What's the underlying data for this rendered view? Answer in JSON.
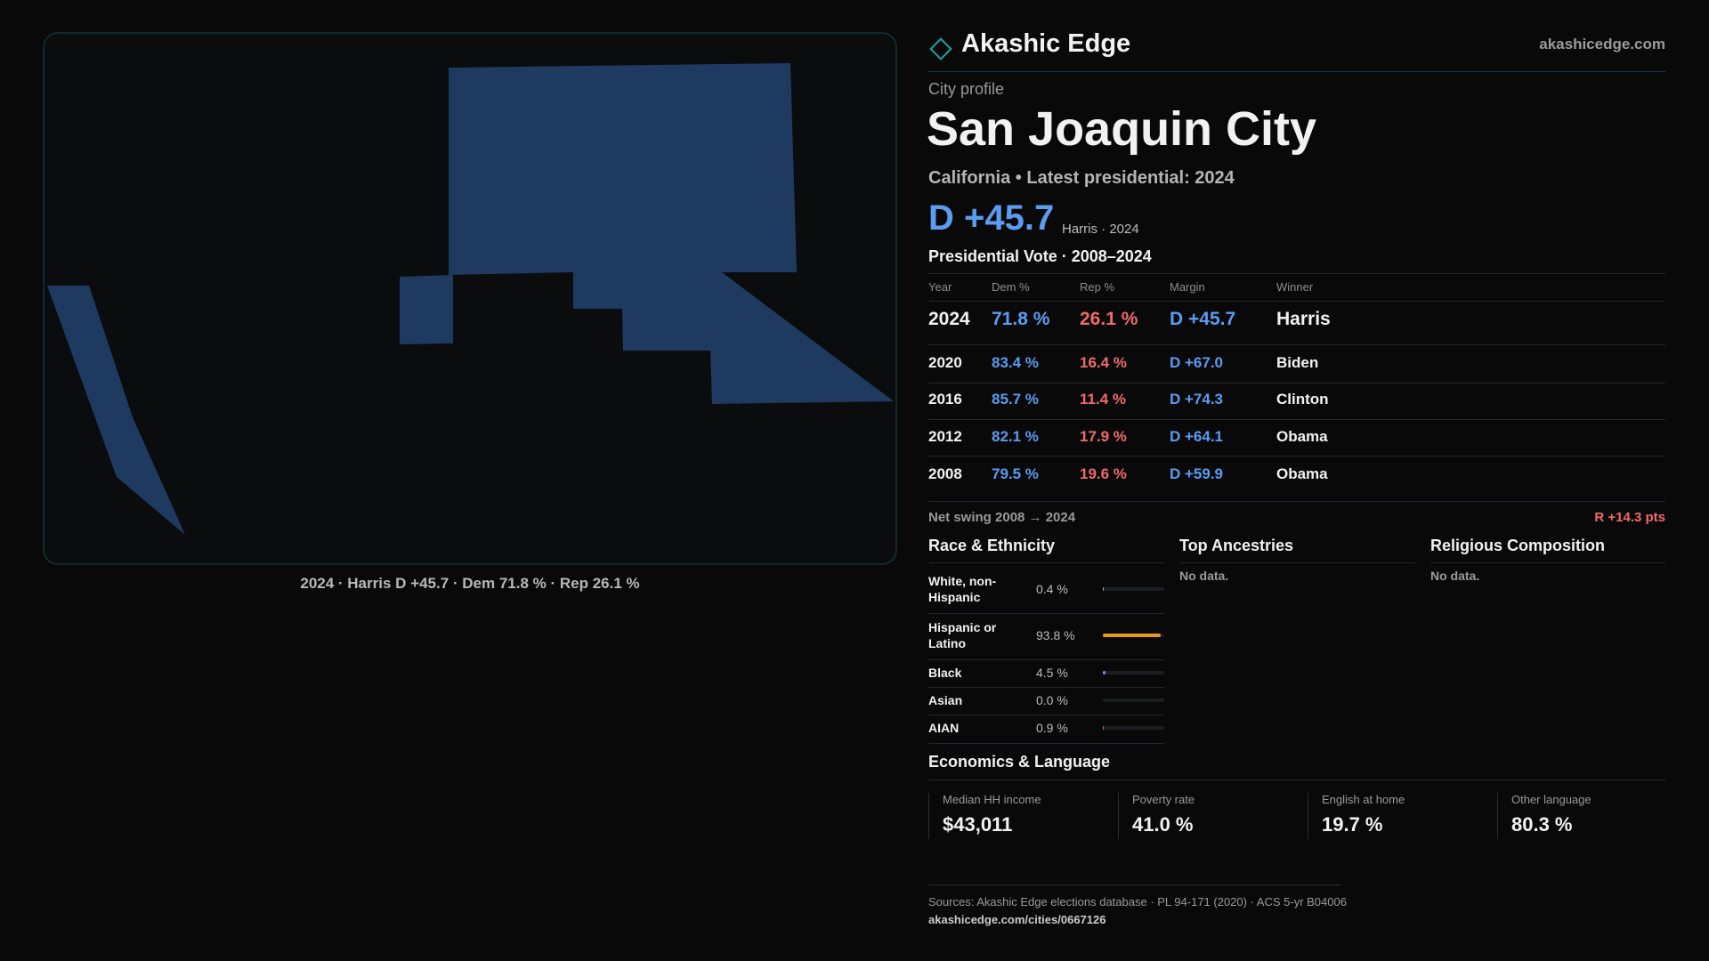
{
  "brand": {
    "name": "Akashic Edge",
    "site": "akashicedge.com"
  },
  "map_caption": "2024 · Harris D +45.7 · Dem 71.8 % · Rep 26.1 %",
  "profile": {
    "kicker": "City profile",
    "title": "San Joaquin City",
    "subtitle": "California • Latest presidential: 2024",
    "headline_margin": "D +45.7",
    "headline_note": "Harris · 2024"
  },
  "vote_table": {
    "title": "Presidential Vote · 2008–2024",
    "columns": [
      "Year",
      "Dem %",
      "Rep %",
      "Margin",
      "Winner"
    ],
    "rows": [
      [
        "2024",
        "71.8 %",
        "26.1 %",
        "D +45.7",
        "Harris"
      ],
      [
        "2020",
        "83.4 %",
        "16.4 %",
        "D +67.0",
        "Biden"
      ],
      [
        "2016",
        "85.7 %",
        "11.4 %",
        "D +74.3",
        "Clinton"
      ],
      [
        "2012",
        "82.1 %",
        "17.9 %",
        "D +64.1",
        "Obama"
      ],
      [
        "2008",
        "79.5 %",
        "19.6 %",
        "D +59.9",
        "Obama"
      ]
    ]
  },
  "net_swing": {
    "label": "Net swing 2008 → 2024",
    "value": "R +14.3 pts"
  },
  "race": {
    "title": "Race & Ethnicity",
    "rows": [
      {
        "name": "White, non-Hispanic",
        "value": 0.4,
        "label": "0.4 %",
        "color": "#9aa0aa"
      },
      {
        "name": "Hispanic or Latino",
        "value": 93.8,
        "label": "93.8 %",
        "color": "#e89a1c"
      },
      {
        "name": "Black",
        "value": 4.5,
        "label": "4.5 %",
        "color": "#8b7cf0"
      },
      {
        "name": "Asian",
        "value": 0.0,
        "label": "0.0 %",
        "color": "#3cc0b0"
      },
      {
        "name": "AIAN",
        "value": 0.9,
        "label": "0.9 %",
        "color": "#e0703a"
      }
    ]
  },
  "ancestries": {
    "title": "Top Ancestries",
    "note": "No data."
  },
  "religion": {
    "title": "Religious Composition",
    "note": "No data."
  },
  "economics": {
    "title": "Economics & Language",
    "stats": [
      {
        "label": "Median HH income",
        "value": "$43,011"
      },
      {
        "label": "Poverty rate",
        "value": "41.0 %"
      },
      {
        "label": "English at home",
        "value": "19.7 %"
      },
      {
        "label": "Other language",
        "value": "80.3 %"
      }
    ]
  },
  "footer": {
    "sources": "Sources: Akashic Edge elections database · PL 94-171 (2020) · ACS 5-yr B04006",
    "url": "akashicedge.com/cities/0667126"
  }
}
